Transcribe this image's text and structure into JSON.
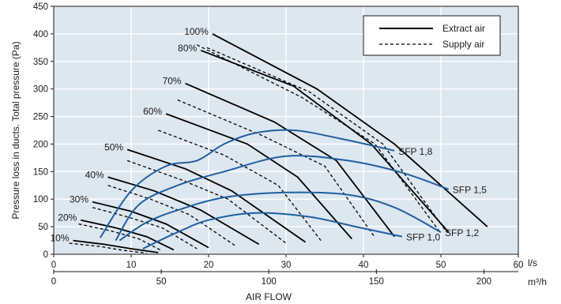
{
  "chart_data": {
    "type": "line",
    "ylabel": "Pressure loss in ducts. Total pressure (Pa)",
    "xlabel": "AIR FLOW",
    "x_unit": "l/s",
    "x2_unit": "m³/h",
    "xlim": [
      0,
      60
    ],
    "ylim": [
      0,
      450
    ],
    "x2lim": [
      0,
      216
    ],
    "x_ticks": [
      "0",
      "10",
      "20",
      "30",
      "40",
      "50",
      "60"
    ],
    "x2_ticks": [
      "0",
      "50",
      "100",
      "150",
      "200"
    ],
    "y_ticks": [
      "0",
      "50",
      "100",
      "150",
      "200",
      "250",
      "300",
      "350",
      "400",
      "450"
    ],
    "grid": true,
    "legend_position": "top-right",
    "legend": [
      {
        "label": "Extract air",
        "style": "solid"
      },
      {
        "label": "Supply air",
        "style": "dashed"
      }
    ],
    "colors": {
      "fan_curves": "#000000",
      "sfp_curves": "#1f5fa0",
      "plot_bg": "#dde7f0",
      "grid": "#ffffff"
    },
    "fan_speed_curves": [
      {
        "label": "100%",
        "extract": [
          [
            20.5,
            400
          ],
          [
            34,
            300
          ],
          [
            44,
            200
          ],
          [
            56,
            50
          ]
        ],
        "supply": [
          [
            19.8,
            375
          ],
          [
            33,
            295
          ],
          [
            42.5,
            200
          ],
          [
            50.5,
            45
          ]
        ]
      },
      {
        "label": "80%",
        "extract": [
          [
            19,
            370
          ],
          [
            31,
            305
          ],
          [
            41,
            200
          ],
          [
            51,
            40
          ]
        ],
        "supply": [
          [
            18.5,
            380
          ],
          [
            32,
            285
          ],
          [
            41.5,
            200
          ],
          [
            50,
            38
          ]
        ]
      },
      {
        "label": "70%",
        "extract": [
          [
            17,
            310
          ],
          [
            28.5,
            240
          ],
          [
            36.5,
            170
          ],
          [
            44,
            32
          ]
        ],
        "supply": [
          [
            16,
            280
          ],
          [
            27,
            215
          ],
          [
            35,
            160
          ],
          [
            41.5,
            30
          ]
        ]
      },
      {
        "label": "60%",
        "extract": [
          [
            14.5,
            255
          ],
          [
            25,
            200
          ],
          [
            31.5,
            140
          ],
          [
            38.5,
            28
          ]
        ],
        "supply": [
          [
            13.5,
            225
          ],
          [
            22,
            180
          ],
          [
            29,
            125
          ],
          [
            34.5,
            25
          ]
        ]
      },
      {
        "label": "50%",
        "extract": [
          [
            9.5,
            190
          ],
          [
            17,
            155
          ],
          [
            23,
            115
          ],
          [
            32.5,
            22
          ]
        ],
        "supply": [
          [
            9.5,
            170
          ],
          [
            16.5,
            135
          ],
          [
            22.5,
            100
          ],
          [
            30,
            20
          ]
        ]
      },
      {
        "label": "40%",
        "extract": [
          [
            7,
            140
          ],
          [
            13,
            115
          ],
          [
            19,
            80
          ],
          [
            26.5,
            18
          ]
        ],
        "supply": [
          [
            7,
            125
          ],
          [
            12.5,
            100
          ],
          [
            17.5,
            72
          ],
          [
            23.5,
            15
          ]
        ]
      },
      {
        "label": "30%",
        "extract": [
          [
            5,
            95
          ],
          [
            10,
            78
          ],
          [
            14.5,
            55
          ],
          [
            20,
            12
          ]
        ],
        "supply": [
          [
            5,
            85
          ],
          [
            9.5,
            68
          ],
          [
            14,
            48
          ],
          [
            18.5,
            10
          ]
        ]
      },
      {
        "label": "20%",
        "extract": [
          [
            3.5,
            62
          ],
          [
            8,
            48
          ],
          [
            12,
            32
          ],
          [
            15.5,
            8
          ]
        ],
        "supply": [
          [
            3.2,
            55
          ],
          [
            7.5,
            42
          ],
          [
            11,
            28
          ],
          [
            14,
            6
          ]
        ]
      },
      {
        "label": "10%",
        "extract": [
          [
            2.5,
            25
          ],
          [
            6.5,
            18
          ],
          [
            10,
            10
          ],
          [
            13.5,
            3
          ]
        ],
        "supply": [
          [
            2,
            20
          ],
          [
            6,
            14
          ],
          [
            9,
            7
          ],
          [
            12,
            2
          ]
        ]
      }
    ],
    "sfp_curves": [
      {
        "label": "SFP 1,8",
        "points": [
          [
            6,
            30
          ],
          [
            10,
            115
          ],
          [
            14.5,
            160
          ],
          [
            18.5,
            170
          ],
          [
            22,
            200
          ],
          [
            26,
            220
          ],
          [
            31,
            225
          ],
          [
            37,
            210
          ],
          [
            44,
            188
          ]
        ]
      },
      {
        "label": "SFP 1,5",
        "points": [
          [
            8,
            25
          ],
          [
            11,
            90
          ],
          [
            16,
            125
          ],
          [
            22,
            150
          ],
          [
            30,
            178
          ],
          [
            38,
            170
          ],
          [
            45,
            148
          ],
          [
            51,
            118
          ]
        ]
      },
      {
        "label": "SFP 1,2",
        "points": [
          [
            8.5,
            25
          ],
          [
            12,
            58
          ],
          [
            16,
            80
          ],
          [
            22,
            103
          ],
          [
            30,
            112
          ],
          [
            38,
            108
          ],
          [
            44,
            85
          ],
          [
            50,
            40
          ]
        ]
      },
      {
        "label": "SFP 1,0",
        "points": [
          [
            11.5,
            10
          ],
          [
            16,
            40
          ],
          [
            20,
            62
          ],
          [
            26,
            75
          ],
          [
            33,
            68
          ],
          [
            39,
            50
          ],
          [
            45,
            32
          ]
        ]
      }
    ]
  }
}
